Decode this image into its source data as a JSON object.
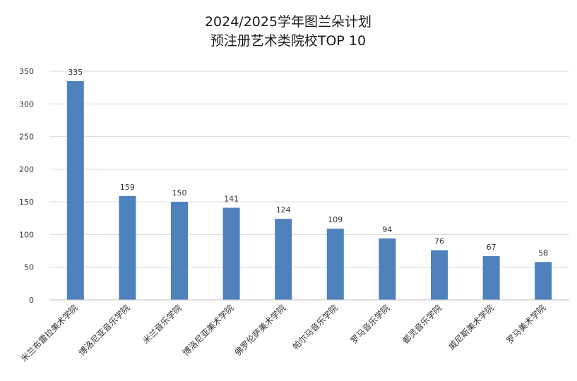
{
  "chart_data": {
    "type": "bar",
    "title_lines": [
      "2024/2025学年图兰朵计划",
      "预注册艺术类院校TOP 10"
    ],
    "categories": [
      "米兰布雷拉美术学院",
      "博洛尼亚音乐学院",
      "米兰音乐学院",
      "博洛尼亚美术学院",
      "佛罗伦萨美术学院",
      "帕尔马音乐学院",
      "罗马音乐学院",
      "都灵音乐学院",
      "威尼斯美术学院",
      "罗马美术学院"
    ],
    "values": [
      335,
      159,
      150,
      141,
      124,
      109,
      94,
      76,
      67,
      58
    ],
    "ylim": [
      0,
      350
    ],
    "yticks": [
      0,
      50,
      100,
      150,
      200,
      250,
      300,
      350
    ],
    "grid": true,
    "legend": "none",
    "colors": {
      "bar": "#4f81bd",
      "grid": "#d9d9d9",
      "axis": "#bfbfbf"
    }
  }
}
